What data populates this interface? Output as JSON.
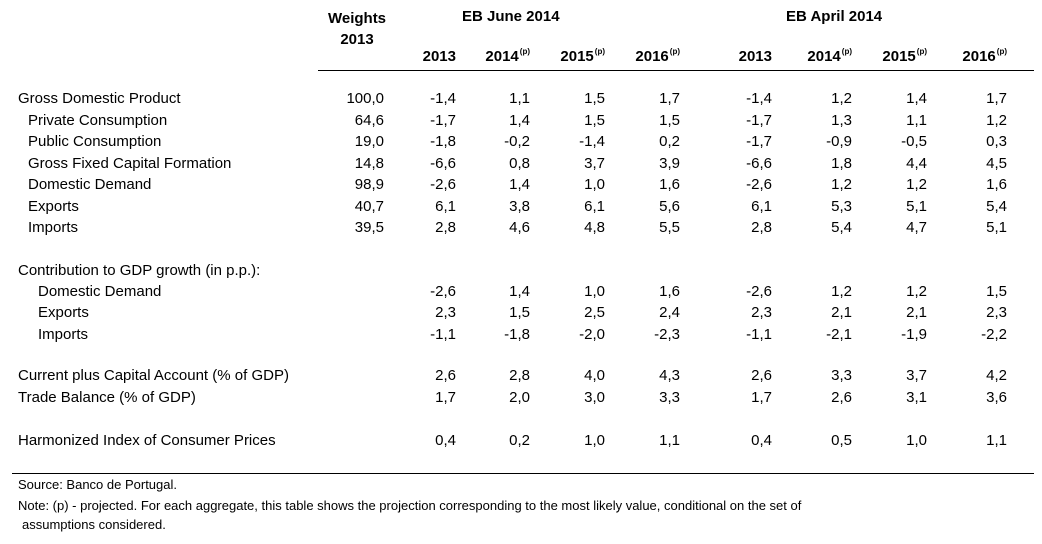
{
  "header": {
    "weights_line1": "Weights",
    "weights_line2": "2013",
    "group1": "EB June 2014",
    "group2": "EB April 2014",
    "years": [
      {
        "year": "2013",
        "mark": ""
      },
      {
        "year": "2014",
        "mark": "(p)"
      },
      {
        "year": "2015",
        "mark": "(p)"
      },
      {
        "year": "2016",
        "mark": "(p)"
      },
      {
        "year": "2013",
        "mark": ""
      },
      {
        "year": "2014",
        "mark": "(p)"
      },
      {
        "year": "2015",
        "mark": "(p)"
      },
      {
        "year": "2016",
        "mark": "(p)"
      }
    ]
  },
  "rows": [
    {
      "label": "Gross Domestic Product",
      "weight": "100,0",
      "values": [
        "-1,4",
        "1,1",
        "1,5",
        "1,7",
        "-1,4",
        "1,2",
        "1,4",
        "1,7"
      ]
    },
    {
      "label": "Private Consumption",
      "weight": "64,6",
      "values": [
        "-1,7",
        "1,4",
        "1,5",
        "1,5",
        "-1,7",
        "1,3",
        "1,1",
        "1,2"
      ]
    },
    {
      "label": "Public Consumption",
      "weight": "19,0",
      "values": [
        "-1,8",
        "-0,2",
        "-1,4",
        "0,2",
        "-1,7",
        "-0,9",
        "-0,5",
        "0,3"
      ]
    },
    {
      "label": "Gross Fixed Capital Formation",
      "weight": "14,8",
      "values": [
        "-6,6",
        "0,8",
        "3,7",
        "3,9",
        "-6,6",
        "1,8",
        "4,4",
        "4,5"
      ]
    },
    {
      "label": "Domestic Demand",
      "weight": "98,9",
      "values": [
        "-2,6",
        "1,4",
        "1,0",
        "1,6",
        "-2,6",
        "1,2",
        "1,2",
        "1,6"
      ]
    },
    {
      "label": "Exports",
      "weight": "40,7",
      "values": [
        "6,1",
        "3,8",
        "6,1",
        "5,6",
        "6,1",
        "5,3",
        "5,1",
        "5,4"
      ]
    },
    {
      "label": "Imports",
      "weight": "39,5",
      "values": [
        "2,8",
        "4,6",
        "4,8",
        "5,5",
        "2,8",
        "5,4",
        "4,7",
        "5,1"
      ]
    },
    {
      "label": "Contribution to GDP growth (in p.p.):",
      "weight": "",
      "values": [
        "",
        "",
        "",
        "",
        "",
        "",
        "",
        ""
      ]
    },
    {
      "label": "Domestic Demand",
      "weight": "",
      "values": [
        "-2,6",
        "1,4",
        "1,0",
        "1,6",
        "-2,6",
        "1,2",
        "1,2",
        "1,5"
      ]
    },
    {
      "label": "Exports",
      "weight": "",
      "values": [
        "2,3",
        "1,5",
        "2,5",
        "2,4",
        "2,3",
        "2,1",
        "2,1",
        "2,3"
      ]
    },
    {
      "label": "Imports",
      "weight": "",
      "values": [
        "-1,1",
        "-1,8",
        "-2,0",
        "-2,3",
        "-1,1",
        "-2,1",
        "-1,9",
        "-2,2"
      ]
    },
    {
      "label": "Current plus Capital Account (% of GDP)",
      "weight": "",
      "values": [
        "2,6",
        "2,8",
        "4,0",
        "4,3",
        "2,6",
        "3,3",
        "3,7",
        "4,2"
      ]
    },
    {
      "label": "Trade Balance (% of GDP)",
      "weight": "",
      "values": [
        "1,7",
        "2,0",
        "3,0",
        "3,3",
        "1,7",
        "2,6",
        "3,1",
        "3,6"
      ]
    },
    {
      "label": "Harmonized Index of Consumer Prices",
      "weight": "",
      "values": [
        "0,4",
        "0,2",
        "1,0",
        "1,1",
        "0,4",
        "0,5",
        "1,0",
        "1,1"
      ]
    }
  ],
  "notes": {
    "source": "Source: Banco de Portugal.",
    "note_line1": "Note: (p) - projected. For each aggregate, this table shows the projection corresponding to the most likely value, conditional on the set of",
    "note_line2": "assumptions considered."
  }
}
